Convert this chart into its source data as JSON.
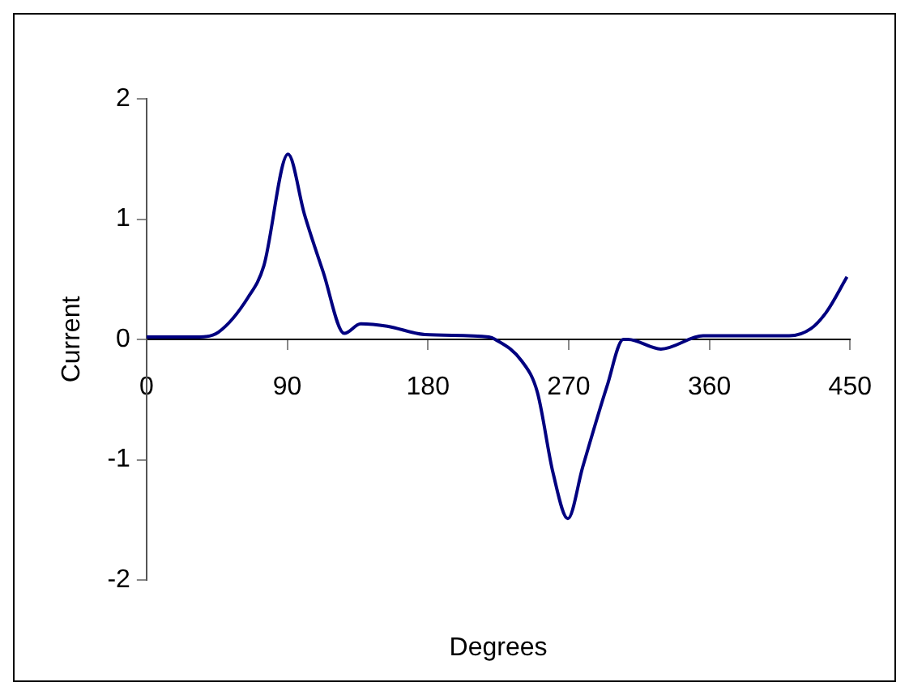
{
  "chart_data": {
    "type": "line",
    "xlabel": "Degrees",
    "ylabel": "Current",
    "x": [
      0,
      34,
      46,
      65,
      75,
      90.5,
      101,
      113,
      126.5,
      137,
      154,
      178,
      219,
      223,
      240,
      250,
      260,
      269.5,
      279,
      294.5,
      305,
      308,
      329,
      356,
      411,
      425,
      435,
      448
    ],
    "series": [
      {
        "color": "#000080",
        "values": [
          0.02,
          0.02,
          0.06,
          0.35,
          0.61,
          1.54,
          1.04,
          0.56,
          0.05,
          0.13,
          0.11,
          0.04,
          0.02,
          0,
          -0.18,
          -0.44,
          -1.11,
          -1.49,
          -1.06,
          -0.39,
          0,
          0,
          -0.08,
          0.03,
          0.03,
          0.09,
          0.23,
          0.52
        ]
      }
    ],
    "xlim": [
      0,
      450
    ],
    "xticks": [
      0,
      90,
      180,
      270,
      360,
      450
    ],
    "ylim": [
      -2,
      2
    ],
    "yticks": [
      -2,
      -1,
      0,
      1,
      2
    ],
    "grid": false,
    "legend": false,
    "marker": "none",
    "line_style": "solid"
  }
}
